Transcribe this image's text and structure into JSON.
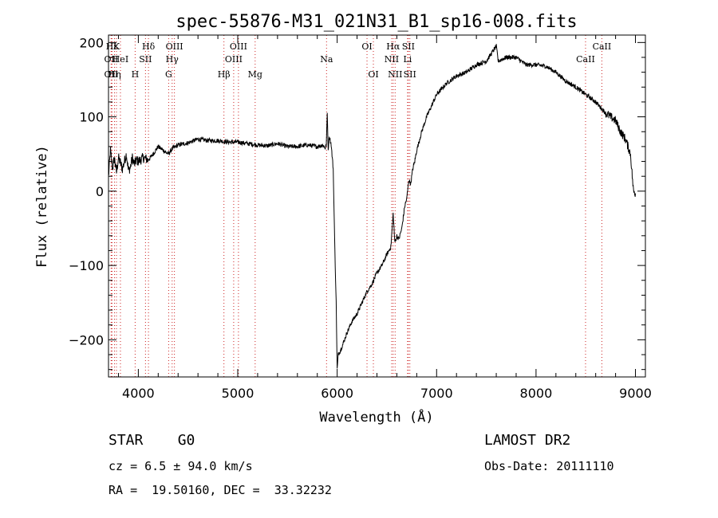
{
  "chart_data": {
    "type": "line",
    "title": "spec-55876-M31_021N31_B1_sp16-008.fits",
    "xlabel": "Wavelength (Å)",
    "ylabel": "Flux (relative)",
    "xlim": [
      3700,
      9100
    ],
    "ylim": [
      -250,
      210
    ],
    "xticks": [
      4000,
      5000,
      6000,
      7000,
      8000,
      9000
    ],
    "yticks": [
      -200,
      -100,
      0,
      100,
      200
    ],
    "series": [
      {
        "x": [
          3700,
          3720,
          3740,
          3760,
          3780,
          3800,
          3820,
          3840,
          3860,
          3880,
          3900,
          3920,
          3940,
          3960,
          3980,
          4000,
          4050,
          4100,
          4150,
          4200,
          4250,
          4300,
          4350,
          4400,
          4500,
          4600,
          4700,
          4800,
          4900,
          5000,
          5100,
          5200,
          5300,
          5400,
          5500,
          5600,
          5700,
          5800,
          5850,
          5870,
          5880,
          5890,
          5900,
          5910,
          5920,
          5940,
          5960,
          5980,
          5990,
          6000,
          6010,
          6030,
          6060,
          6100,
          6150,
          6200,
          6250,
          6300,
          6350,
          6400,
          6450,
          6500,
          6540,
          6563,
          6580,
          6600,
          6620,
          6650,
          6680,
          6700,
          6720,
          6740,
          6760,
          6780,
          6800,
          6850,
          6900,
          6950,
          7000,
          7100,
          7200,
          7300,
          7400,
          7500,
          7600,
          7620,
          7700,
          7800,
          7900,
          8000,
          8100,
          8200,
          8300,
          8400,
          8500,
          8600,
          8700,
          8750,
          8800,
          8850,
          8900,
          8950,
          8980,
          9000
        ],
        "y": [
          20,
          55,
          30,
          45,
          25,
          45,
          38,
          30,
          40,
          50,
          28,
          32,
          45,
          36,
          42,
          40,
          45,
          42,
          50,
          60,
          55,
          50,
          58,
          62,
          65,
          70,
          68,
          68,
          66,
          66,
          64,
          62,
          61,
          64,
          60,
          60,
          62,
          60,
          62,
          60,
          58,
          62,
          105,
          55,
          75,
          62,
          30,
          -100,
          -150,
          -240,
          -220,
          -215,
          -205,
          -190,
          -175,
          -165,
          -150,
          -135,
          -125,
          -110,
          -100,
          -85,
          -75,
          -30,
          -70,
          -60,
          -65,
          -50,
          -20,
          -10,
          15,
          10,
          30,
          40,
          55,
          80,
          100,
          115,
          130,
          145,
          155,
          160,
          170,
          175,
          195,
          175,
          180,
          180,
          170,
          170,
          168,
          160,
          148,
          140,
          130,
          120,
          105,
          100,
          95,
          80,
          70,
          50,
          0,
          -3
        ]
      }
    ],
    "lines": [
      {
        "label": "Hε",
        "x": 3735,
        "row": 0
      },
      {
        "label": "K",
        "x": 3780,
        "row": 0
      },
      {
        "label": "Hδ",
        "x": 4102,
        "row": 0
      },
      {
        "label": "OIII",
        "x": 4363,
        "row": 0
      },
      {
        "label": "OIII",
        "x": 5007,
        "row": 0
      },
      {
        "label": "OI",
        "x": 6300,
        "row": 0
      },
      {
        "label": "Hα",
        "x": 6563,
        "row": 0
      },
      {
        "label": "SII",
        "x": 6716,
        "row": 0
      },
      {
        "label": "CaII",
        "x": 8662,
        "row": 0
      },
      {
        "label": "OII",
        "x": 3727,
        "row": 1
      },
      {
        "label": "HeI",
        "x": 3820,
        "row": 1
      },
      {
        "label": "SII",
        "x": 4072,
        "row": 1
      },
      {
        "label": "Hγ",
        "x": 4340,
        "row": 1
      },
      {
        "label": "OIII",
        "x": 4959,
        "row": 1
      },
      {
        "label": "Na",
        "x": 5893,
        "row": 1
      },
      {
        "label": "NII",
        "x": 6548,
        "row": 1
      },
      {
        "label": "Li",
        "x": 6708,
        "row": 1
      },
      {
        "label": "CaII",
        "x": 8498,
        "row": 1
      },
      {
        "label": "OII",
        "x": 3727,
        "row": 2
      },
      {
        "label": "Hη",
        "x": 3760,
        "row": 2
      },
      {
        "label": "H",
        "x": 3968,
        "row": 2
      },
      {
        "label": "G",
        "x": 4305,
        "row": 2
      },
      {
        "label": "Hβ",
        "x": 4861,
        "row": 2
      },
      {
        "label": "Mg",
        "x": 5175,
        "row": 2
      },
      {
        "label": "OI",
        "x": 6364,
        "row": 2
      },
      {
        "label": "NII",
        "x": 6583,
        "row": 2
      },
      {
        "label": "SII",
        "x": 6731,
        "row": 2
      }
    ],
    "grid": false
  },
  "info": {
    "class": "STAR    G0",
    "survey": "LAMOST DR2",
    "cz": "cz = 6.5 ± 94.0 km/s",
    "obs_date": "Obs-Date: 20111110",
    "coords": "RA =  19.50160, DEC =  33.32232"
  }
}
